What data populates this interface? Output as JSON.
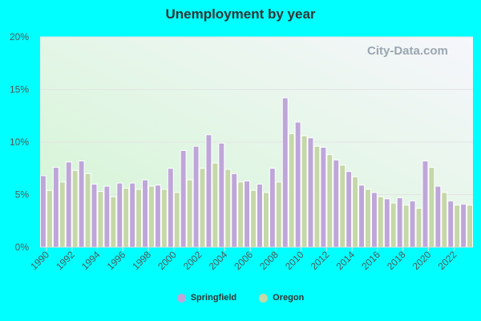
{
  "chart_data": {
    "type": "bar",
    "title": "Unemployment by year",
    "xlabel": "",
    "ylabel": "",
    "ylim": [
      0,
      20
    ],
    "yticks": [
      "0%",
      "5%",
      "10%",
      "15%",
      "20%"
    ],
    "grid": true,
    "legend_position": "bottom",
    "categories": [
      1990,
      1991,
      1992,
      1993,
      1994,
      1995,
      1996,
      1997,
      1998,
      1999,
      2000,
      2001,
      2002,
      2003,
      2004,
      2005,
      2006,
      2007,
      2008,
      2009,
      2010,
      2011,
      2012,
      2013,
      2014,
      2015,
      2016,
      2017,
      2018,
      2019,
      2020,
      2021,
      2022,
      2023
    ],
    "xtick_labels": [
      "1990",
      "1992",
      "1994",
      "1996",
      "1998",
      "2000",
      "2002",
      "2004",
      "2006",
      "2008",
      "2010",
      "2012",
      "2014",
      "2016",
      "2018",
      "2020",
      "2022"
    ],
    "series": [
      {
        "name": "Springfield",
        "color": "#bea6d9",
        "values": [
          6.8,
          7.6,
          8.1,
          8.2,
          6.0,
          5.8,
          6.1,
          6.1,
          6.4,
          5.9,
          7.5,
          9.2,
          9.6,
          10.7,
          9.9,
          7.0,
          6.3,
          6.0,
          7.5,
          14.2,
          11.9,
          10.4,
          9.5,
          8.3,
          7.2,
          5.9,
          5.2,
          4.6,
          4.7,
          4.4,
          8.2,
          5.8,
          4.4,
          4.1
        ]
      },
      {
        "name": "Oregon",
        "color": "#c4d8a8",
        "values": [
          5.4,
          6.2,
          7.3,
          7.0,
          5.3,
          4.8,
          5.6,
          5.5,
          5.8,
          5.5,
          5.2,
          6.4,
          7.5,
          8.0,
          7.4,
          6.2,
          5.4,
          5.2,
          6.2,
          10.8,
          10.6,
          9.6,
          8.8,
          7.8,
          6.7,
          5.5,
          4.8,
          4.2,
          4.0,
          3.7,
          7.6,
          5.2,
          4.0,
          4.0
        ]
      }
    ]
  },
  "watermark": "City-Data.com"
}
